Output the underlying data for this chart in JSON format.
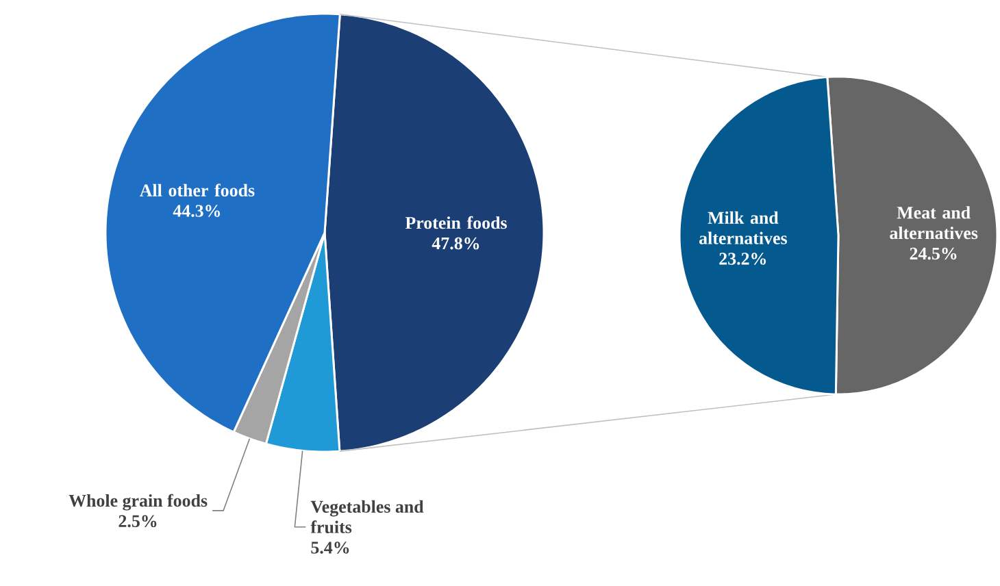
{
  "chart_data": [
    {
      "type": "pie",
      "categories": [
        "Protein foods",
        "Vegetables and fruits",
        "Whole grain foods",
        "All other foods"
      ],
      "values": [
        47.8,
        5.4,
        2.5,
        44.3
      ],
      "value_labels": [
        "47.8%",
        "5.4%",
        "2.5%",
        "44.3%"
      ],
      "colors": [
        "#1b3f75",
        "#1f9ad6",
        "#a5a5a5",
        "#1f6fc4"
      ]
    },
    {
      "type": "pie",
      "categories": [
        "Meat and alternatives",
        "Milk and alternatives"
      ],
      "values": [
        24.5,
        23.2
      ],
      "value_labels": [
        "24.5%",
        "23.2%"
      ],
      "colors": [
        "#666666",
        "#04598f"
      ]
    }
  ]
}
